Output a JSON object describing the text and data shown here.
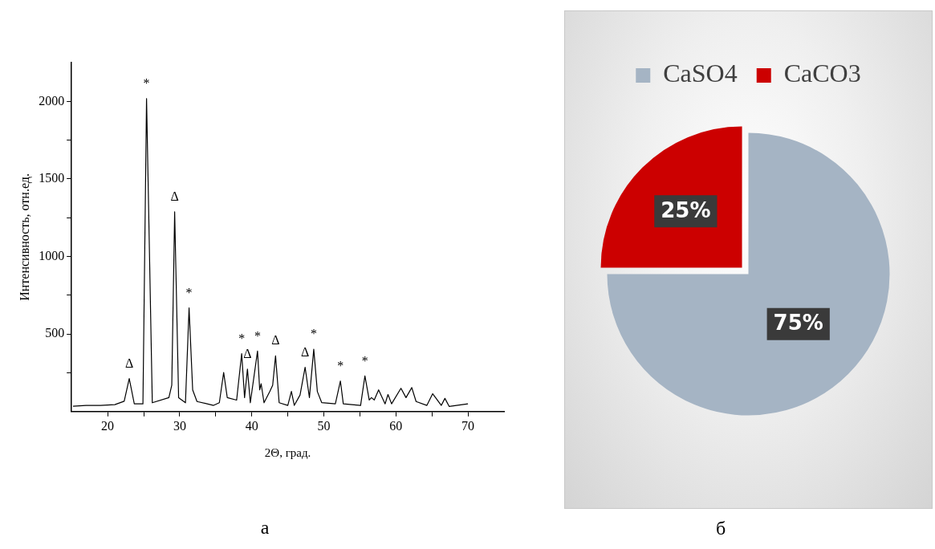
{
  "chart_data": [
    {
      "type": "line",
      "xlabel": "2Θ, град.",
      "ylabel": "Интенсивность, отн.ед.",
      "xlim": [
        15,
        75
      ],
      "ylim": [
        0,
        2250
      ],
      "xticks": [
        20,
        {
          "value": 25,
          "label": null
        },
        30,
        {
          "value": 35,
          "label": null
        },
        40,
        {
          "value": 45,
          "label": null
        },
        50,
        {
          "value": 55,
          "label": null
        },
        60,
        {
          "value": 65,
          "label": null
        },
        70
      ],
      "yticks": [
        {
          "value": 250,
          "label": null
        },
        500,
        {
          "value": 750,
          "label": null
        },
        1000,
        {
          "value": 1250,
          "label": null
        },
        1500,
        {
          "value": 1750,
          "label": null
        },
        2000
      ],
      "grid": false,
      "legend": false,
      "series": [
        {
          "color": "#000000",
          "x": [
            15.2,
            17,
            19,
            21,
            22.3,
            23.0,
            23.7,
            24.9,
            25.4,
            26.2,
            28.5,
            28.9,
            29.3,
            29.85,
            30.8,
            31.3,
            31.8,
            32.4,
            34.7,
            35.5,
            36.1,
            36.6,
            37.9,
            38.6,
            39.0,
            39.4,
            39.8,
            40.8,
            41.1,
            41.3,
            41.7,
            42.5,
            42.9,
            43.3,
            43.8,
            45.0,
            45.5,
            45.9,
            46.7,
            47.4,
            48.0,
            48.6,
            49.1,
            49.7,
            51.6,
            52.3,
            52.7,
            55.1,
            55.7,
            56.3,
            56.6,
            57.0,
            57.6,
            58.5,
            58.9,
            59.4,
            60.7,
            61.4,
            62.2,
            62.8,
            64.3,
            65.1,
            65.5,
            66.3,
            66.8,
            67.4,
            70.0
          ],
          "values": [
            35,
            40,
            40,
            45,
            67,
            213,
            50,
            50,
            2018,
            57,
            90,
            170,
            1288,
            90,
            57,
            668,
            140,
            65,
            40,
            57,
            252,
            90,
            74,
            374,
            90,
            274,
            57,
            390,
            140,
            180,
            57,
            130,
            170,
            360,
            57,
            40,
            130,
            40,
            107,
            286,
            90,
            402,
            129,
            58,
            50,
            197,
            50,
            40,
            230,
            75,
            90,
            75,
            140,
            50,
            110,
            50,
            150,
            90,
            155,
            65,
            40,
            115,
            90,
            40,
            85,
            33,
            50
          ]
        }
      ],
      "annotations": [
        {
          "text": "Δ",
          "x": 23.0,
          "y": 213
        },
        {
          "text": "*",
          "x": 25.4,
          "y": 2018
        },
        {
          "text": "Δ",
          "x": 29.3,
          "y": 1288
        },
        {
          "text": "*",
          "x": 31.3,
          "y": 668
        },
        {
          "text": "*",
          "x": 38.6,
          "y": 374
        },
        {
          "text": "Δ",
          "x": 39.4,
          "y": 274
        },
        {
          "text": "*",
          "x": 40.8,
          "y": 390
        },
        {
          "text": "Δ",
          "x": 43.3,
          "y": 360
        },
        {
          "text": "Δ",
          "x": 47.4,
          "y": 286
        },
        {
          "text": "*",
          "x": 48.6,
          "y": 402
        },
        {
          "text": "*",
          "x": 52.3,
          "y": 197
        },
        {
          "text": "*",
          "x": 55.7,
          "y": 230
        },
        "а"
      ]
    },
    {
      "type": "pie",
      "categories": [
        "CaSO4",
        "CaCO3"
      ],
      "values": [
        75,
        25
      ],
      "colors": [
        "#a5b4c4",
        "#cc0000"
      ],
      "value_labels": [
        "75%",
        "25%"
      ],
      "legend": "top",
      "annotations": [
        "б"
      ]
    }
  ]
}
